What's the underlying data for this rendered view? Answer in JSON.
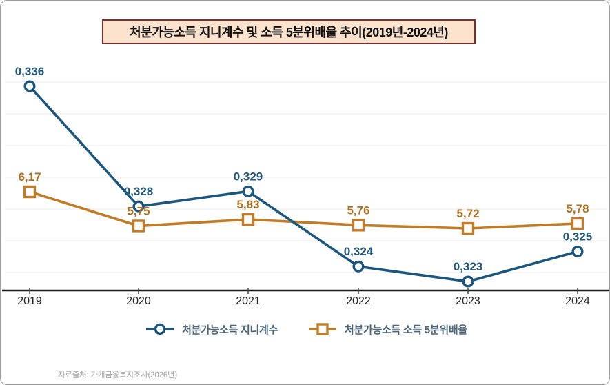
{
  "chart_data": {
    "type": "line",
    "title": "처분가능소득 지니계수 및 소득 5분위배율 추이(2019년-2024년)",
    "categories": [
      "2019",
      "2020",
      "2021",
      "2022",
      "2023",
      "2024"
    ],
    "series": [
      {
        "name": "처분가능소득 지니계수",
        "marker": "circle",
        "color": "#1a567e",
        "label_color": "#1f5a7e",
        "values": [
          0.336,
          0.328,
          0.329,
          0.324,
          0.323,
          0.325
        ],
        "labels": [
          "0,336",
          "0,328",
          "0,329",
          "0,324",
          "0,323",
          "0,325"
        ]
      },
      {
        "name": "처분가능소득 소득 5분위배율",
        "marker": "square",
        "color": "#c27b27",
        "label_color": "#b06f1f",
        "values": [
          6.17,
          5.75,
          5.83,
          5.76,
          5.72,
          5.78
        ],
        "labels": [
          "6,17",
          "5,75",
          "5,83",
          "5,76",
          "5,72",
          "5,78"
        ]
      }
    ],
    "grid": true,
    "y_axis_visible": false,
    "legend_position": "bottom",
    "source": "자료출처: 가계금융복지조사(2026년)"
  },
  "colors": {
    "title_box_background": "#fbe2cd",
    "title_box_border": "#7b2c2c",
    "axis": "#1a1a1a",
    "gridline": "#efefef",
    "x_label": "#222222",
    "legend_text": "#4a6478",
    "source_text": "#a3a3a3",
    "page_border": "#9e9e9e"
  }
}
